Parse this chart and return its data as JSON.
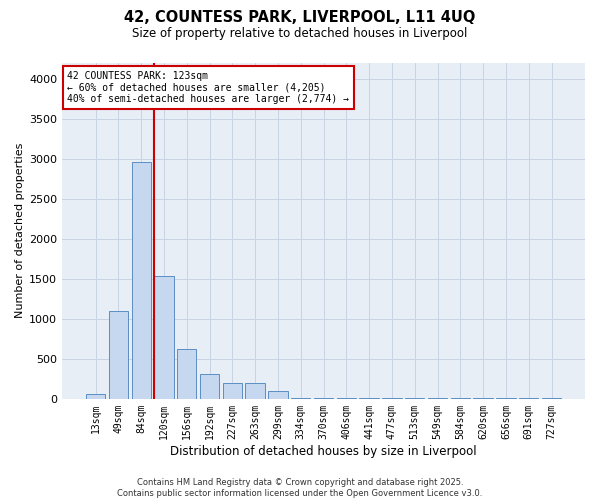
{
  "title1": "42, COUNTESS PARK, LIVERPOOL, L11 4UQ",
  "title2": "Size of property relative to detached houses in Liverpool",
  "xlabel": "Distribution of detached houses by size in Liverpool",
  "ylabel": "Number of detached properties",
  "categories": [
    "13sqm",
    "49sqm",
    "84sqm",
    "120sqm",
    "156sqm",
    "192sqm",
    "227sqm",
    "263sqm",
    "299sqm",
    "334sqm",
    "370sqm",
    "406sqm",
    "441sqm",
    "477sqm",
    "513sqm",
    "549sqm",
    "584sqm",
    "620sqm",
    "656sqm",
    "691sqm",
    "727sqm"
  ],
  "values": [
    65,
    1100,
    2960,
    1530,
    620,
    310,
    200,
    195,
    100,
    15,
    15,
    15,
    15,
    15,
    15,
    15,
    15,
    15,
    15,
    15,
    15
  ],
  "bar_color": "#c5d8f0",
  "bar_edge_color": "#5b8ec5",
  "grid_color": "#c8d4e4",
  "background_color": "#e8eef6",
  "vline_x": 2.575,
  "vline_color": "#cc0000",
  "annotation_text": "42 COUNTESS PARK: 123sqm\n← 60% of detached houses are smaller (4,205)\n40% of semi-detached houses are larger (2,774) →",
  "annotation_box_edgecolor": "#cc0000",
  "footer_line1": "Contains HM Land Registry data © Crown copyright and database right 2025.",
  "footer_line2": "Contains public sector information licensed under the Open Government Licence v3.0.",
  "ylim": [
    0,
    4200
  ],
  "yticks": [
    0,
    500,
    1000,
    1500,
    2000,
    2500,
    3000,
    3500,
    4000
  ]
}
